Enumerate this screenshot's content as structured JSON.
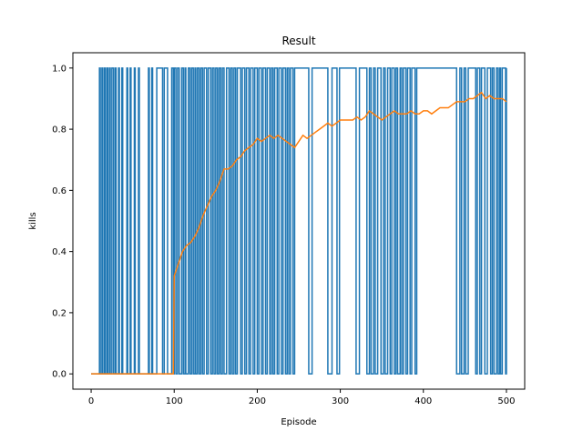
{
  "chart_data": {
    "type": "line",
    "title": "Result",
    "xlabel": "Episode",
    "ylabel": "kills",
    "xlim": [
      -22,
      522
    ],
    "ylim": [
      -0.05,
      1.05
    ],
    "xticks": [
      0,
      100,
      200,
      300,
      400,
      500
    ],
    "yticks": [
      0.0,
      0.2,
      0.4,
      0.6,
      0.8,
      1.0
    ],
    "xtick_labels": [
      "0",
      "100",
      "200",
      "300",
      "400",
      "500"
    ],
    "ytick_labels": [
      "0.0",
      "0.2",
      "0.4",
      "0.6",
      "0.8",
      "1.0"
    ],
    "grid": false,
    "legend": "none",
    "series": [
      {
        "role": "per-episode kills",
        "color": "#1f77b4",
        "x_start": 0,
        "x_end": 500,
        "one_intervals": [
          [
            10,
            11
          ],
          [
            13,
            14
          ],
          [
            16,
            17
          ],
          [
            19,
            20
          ],
          [
            22,
            23
          ],
          [
            25,
            27
          ],
          [
            29,
            30
          ],
          [
            33,
            34
          ],
          [
            37,
            38
          ],
          [
            43,
            44
          ],
          [
            47,
            48
          ],
          [
            52,
            53
          ],
          [
            57,
            58
          ],
          [
            69,
            70
          ],
          [
            73,
            74
          ],
          [
            79,
            86
          ],
          [
            88,
            92
          ],
          [
            97,
            99
          ],
          [
            100,
            102
          ],
          [
            104,
            106
          ],
          [
            109,
            111
          ],
          [
            113,
            114
          ],
          [
            117,
            119
          ],
          [
            121,
            123
          ],
          [
            125,
            126
          ],
          [
            128,
            130
          ],
          [
            132,
            134
          ],
          [
            136,
            139
          ],
          [
            141,
            144
          ],
          [
            146,
            148
          ],
          [
            150,
            152
          ],
          [
            154,
            156
          ],
          [
            158,
            160
          ],
          [
            163,
            166
          ],
          [
            168,
            170
          ],
          [
            172,
            174
          ],
          [
            176,
            180
          ],
          [
            182,
            185
          ],
          [
            187,
            190
          ],
          [
            192,
            195
          ],
          [
            197,
            200
          ],
          [
            202,
            205
          ],
          [
            207,
            210
          ],
          [
            212,
            215
          ],
          [
            217,
            219
          ],
          [
            221,
            224
          ],
          [
            226,
            229
          ],
          [
            231,
            234
          ],
          [
            236,
            238
          ],
          [
            240,
            243
          ],
          [
            245,
            262
          ],
          [
            266,
            285
          ],
          [
            290,
            296
          ],
          [
            299,
            319
          ],
          [
            323,
            332
          ],
          [
            335,
            337
          ],
          [
            340,
            342
          ],
          [
            345,
            349
          ],
          [
            352,
            354
          ],
          [
            357,
            360
          ],
          [
            362,
            365
          ],
          [
            367,
            369
          ],
          [
            372,
            374
          ],
          [
            376,
            379
          ],
          [
            381,
            384
          ],
          [
            386,
            390
          ],
          [
            392,
            440
          ],
          [
            444,
            446
          ],
          [
            449,
            451
          ],
          [
            454,
            463
          ],
          [
            465,
            468
          ],
          [
            470,
            474
          ],
          [
            477,
            481
          ],
          [
            483,
            485
          ],
          [
            488,
            490
          ],
          [
            492,
            493
          ],
          [
            495,
            499
          ],
          [
            500,
            500
          ]
        ]
      },
      {
        "role": "running average",
        "color": "#ff7f0e",
        "x": [
          0,
          99,
          100,
          105,
          110,
          115,
          120,
          125,
          130,
          135,
          140,
          145,
          150,
          155,
          160,
          165,
          170,
          175,
          180,
          185,
          190,
          195,
          200,
          205,
          210,
          215,
          220,
          225,
          230,
          235,
          240,
          245,
          250,
          255,
          260,
          265,
          270,
          275,
          280,
          285,
          290,
          295,
          300,
          305,
          310,
          315,
          320,
          325,
          330,
          335,
          340,
          345,
          350,
          355,
          360,
          365,
          370,
          375,
          380,
          385,
          390,
          395,
          400,
          405,
          410,
          415,
          420,
          425,
          430,
          435,
          440,
          445,
          450,
          455,
          460,
          465,
          470,
          475,
          480,
          485,
          490,
          495,
          500
        ],
        "y": [
          0.0,
          0.0,
          0.32,
          0.36,
          0.4,
          0.42,
          0.43,
          0.45,
          0.48,
          0.52,
          0.55,
          0.58,
          0.6,
          0.63,
          0.67,
          0.67,
          0.68,
          0.7,
          0.71,
          0.73,
          0.74,
          0.75,
          0.77,
          0.76,
          0.77,
          0.78,
          0.77,
          0.78,
          0.77,
          0.76,
          0.75,
          0.74,
          0.76,
          0.78,
          0.77,
          0.78,
          0.79,
          0.8,
          0.81,
          0.82,
          0.81,
          0.82,
          0.83,
          0.83,
          0.83,
          0.83,
          0.84,
          0.83,
          0.84,
          0.86,
          0.85,
          0.84,
          0.83,
          0.84,
          0.85,
          0.86,
          0.85,
          0.85,
          0.85,
          0.86,
          0.85,
          0.85,
          0.86,
          0.86,
          0.85,
          0.86,
          0.87,
          0.87,
          0.87,
          0.88,
          0.89,
          0.89,
          0.89,
          0.9,
          0.9,
          0.91,
          0.92,
          0.9,
          0.91,
          0.9,
          0.9,
          0.9,
          0.89
        ]
      }
    ]
  }
}
